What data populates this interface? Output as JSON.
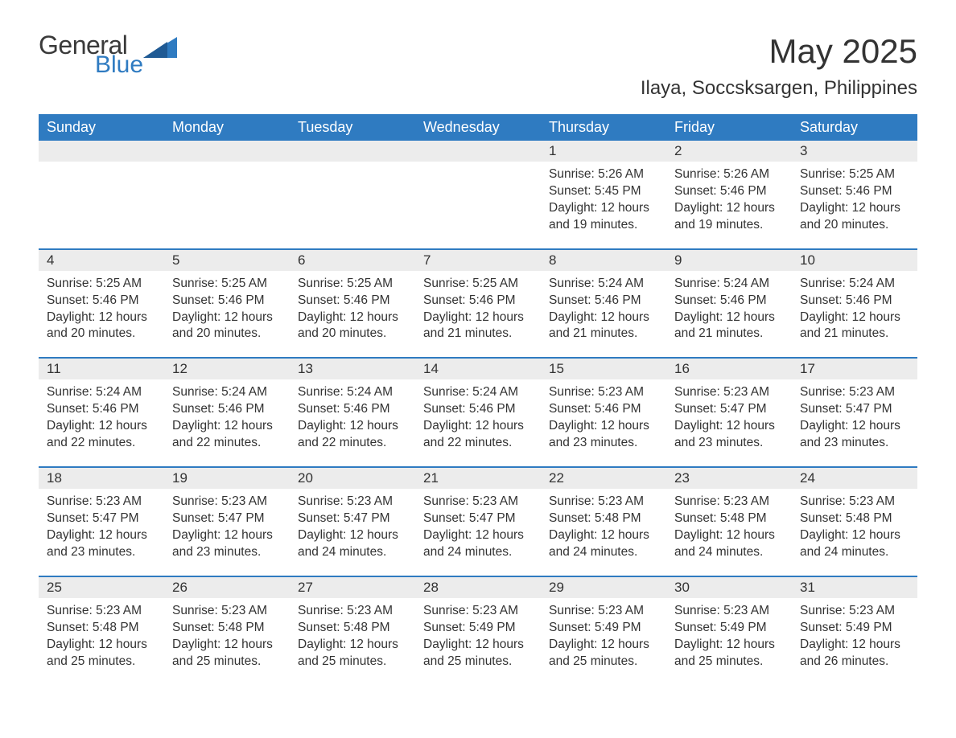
{
  "logo": {
    "general": "General",
    "blue": "Blue",
    "shape_color": "#2f7bc1"
  },
  "title": "May 2025",
  "location": "Ilaya, Soccsksargen, Philippines",
  "colors": {
    "header_bg": "#2f7bc1",
    "header_text": "#ffffff",
    "date_strip_bg": "#ececec",
    "week_border": "#2f7bc1",
    "text": "#333333",
    "background": "#ffffff"
  },
  "typography": {
    "title_fontsize": 42,
    "location_fontsize": 24,
    "header_fontsize": 18,
    "date_fontsize": 17,
    "body_fontsize": 15.5
  },
  "layout": {
    "columns": 7,
    "rows": 5
  },
  "weekdays": [
    "Sunday",
    "Monday",
    "Tuesday",
    "Wednesday",
    "Thursday",
    "Friday",
    "Saturday"
  ],
  "weeks": [
    {
      "days": [
        {
          "date": "",
          "sunrise": "",
          "sunset": "",
          "daylight1": "",
          "daylight2": ""
        },
        {
          "date": "",
          "sunrise": "",
          "sunset": "",
          "daylight1": "",
          "daylight2": ""
        },
        {
          "date": "",
          "sunrise": "",
          "sunset": "",
          "daylight1": "",
          "daylight2": ""
        },
        {
          "date": "",
          "sunrise": "",
          "sunset": "",
          "daylight1": "",
          "daylight2": ""
        },
        {
          "date": "1",
          "sunrise": "Sunrise: 5:26 AM",
          "sunset": "Sunset: 5:45 PM",
          "daylight1": "Daylight: 12 hours",
          "daylight2": "and 19 minutes."
        },
        {
          "date": "2",
          "sunrise": "Sunrise: 5:26 AM",
          "sunset": "Sunset: 5:46 PM",
          "daylight1": "Daylight: 12 hours",
          "daylight2": "and 19 minutes."
        },
        {
          "date": "3",
          "sunrise": "Sunrise: 5:25 AM",
          "sunset": "Sunset: 5:46 PM",
          "daylight1": "Daylight: 12 hours",
          "daylight2": "and 20 minutes."
        }
      ]
    },
    {
      "days": [
        {
          "date": "4",
          "sunrise": "Sunrise: 5:25 AM",
          "sunset": "Sunset: 5:46 PM",
          "daylight1": "Daylight: 12 hours",
          "daylight2": "and 20 minutes."
        },
        {
          "date": "5",
          "sunrise": "Sunrise: 5:25 AM",
          "sunset": "Sunset: 5:46 PM",
          "daylight1": "Daylight: 12 hours",
          "daylight2": "and 20 minutes."
        },
        {
          "date": "6",
          "sunrise": "Sunrise: 5:25 AM",
          "sunset": "Sunset: 5:46 PM",
          "daylight1": "Daylight: 12 hours",
          "daylight2": "and 20 minutes."
        },
        {
          "date": "7",
          "sunrise": "Sunrise: 5:25 AM",
          "sunset": "Sunset: 5:46 PM",
          "daylight1": "Daylight: 12 hours",
          "daylight2": "and 21 minutes."
        },
        {
          "date": "8",
          "sunrise": "Sunrise: 5:24 AM",
          "sunset": "Sunset: 5:46 PM",
          "daylight1": "Daylight: 12 hours",
          "daylight2": "and 21 minutes."
        },
        {
          "date": "9",
          "sunrise": "Sunrise: 5:24 AM",
          "sunset": "Sunset: 5:46 PM",
          "daylight1": "Daylight: 12 hours",
          "daylight2": "and 21 minutes."
        },
        {
          "date": "10",
          "sunrise": "Sunrise: 5:24 AM",
          "sunset": "Sunset: 5:46 PM",
          "daylight1": "Daylight: 12 hours",
          "daylight2": "and 21 minutes."
        }
      ]
    },
    {
      "days": [
        {
          "date": "11",
          "sunrise": "Sunrise: 5:24 AM",
          "sunset": "Sunset: 5:46 PM",
          "daylight1": "Daylight: 12 hours",
          "daylight2": "and 22 minutes."
        },
        {
          "date": "12",
          "sunrise": "Sunrise: 5:24 AM",
          "sunset": "Sunset: 5:46 PM",
          "daylight1": "Daylight: 12 hours",
          "daylight2": "and 22 minutes."
        },
        {
          "date": "13",
          "sunrise": "Sunrise: 5:24 AM",
          "sunset": "Sunset: 5:46 PM",
          "daylight1": "Daylight: 12 hours",
          "daylight2": "and 22 minutes."
        },
        {
          "date": "14",
          "sunrise": "Sunrise: 5:24 AM",
          "sunset": "Sunset: 5:46 PM",
          "daylight1": "Daylight: 12 hours",
          "daylight2": "and 22 minutes."
        },
        {
          "date": "15",
          "sunrise": "Sunrise: 5:23 AM",
          "sunset": "Sunset: 5:46 PM",
          "daylight1": "Daylight: 12 hours",
          "daylight2": "and 23 minutes."
        },
        {
          "date": "16",
          "sunrise": "Sunrise: 5:23 AM",
          "sunset": "Sunset: 5:47 PM",
          "daylight1": "Daylight: 12 hours",
          "daylight2": "and 23 minutes."
        },
        {
          "date": "17",
          "sunrise": "Sunrise: 5:23 AM",
          "sunset": "Sunset: 5:47 PM",
          "daylight1": "Daylight: 12 hours",
          "daylight2": "and 23 minutes."
        }
      ]
    },
    {
      "days": [
        {
          "date": "18",
          "sunrise": "Sunrise: 5:23 AM",
          "sunset": "Sunset: 5:47 PM",
          "daylight1": "Daylight: 12 hours",
          "daylight2": "and 23 minutes."
        },
        {
          "date": "19",
          "sunrise": "Sunrise: 5:23 AM",
          "sunset": "Sunset: 5:47 PM",
          "daylight1": "Daylight: 12 hours",
          "daylight2": "and 23 minutes."
        },
        {
          "date": "20",
          "sunrise": "Sunrise: 5:23 AM",
          "sunset": "Sunset: 5:47 PM",
          "daylight1": "Daylight: 12 hours",
          "daylight2": "and 24 minutes."
        },
        {
          "date": "21",
          "sunrise": "Sunrise: 5:23 AM",
          "sunset": "Sunset: 5:47 PM",
          "daylight1": "Daylight: 12 hours",
          "daylight2": "and 24 minutes."
        },
        {
          "date": "22",
          "sunrise": "Sunrise: 5:23 AM",
          "sunset": "Sunset: 5:48 PM",
          "daylight1": "Daylight: 12 hours",
          "daylight2": "and 24 minutes."
        },
        {
          "date": "23",
          "sunrise": "Sunrise: 5:23 AM",
          "sunset": "Sunset: 5:48 PM",
          "daylight1": "Daylight: 12 hours",
          "daylight2": "and 24 minutes."
        },
        {
          "date": "24",
          "sunrise": "Sunrise: 5:23 AM",
          "sunset": "Sunset: 5:48 PM",
          "daylight1": "Daylight: 12 hours",
          "daylight2": "and 24 minutes."
        }
      ]
    },
    {
      "days": [
        {
          "date": "25",
          "sunrise": "Sunrise: 5:23 AM",
          "sunset": "Sunset: 5:48 PM",
          "daylight1": "Daylight: 12 hours",
          "daylight2": "and 25 minutes."
        },
        {
          "date": "26",
          "sunrise": "Sunrise: 5:23 AM",
          "sunset": "Sunset: 5:48 PM",
          "daylight1": "Daylight: 12 hours",
          "daylight2": "and 25 minutes."
        },
        {
          "date": "27",
          "sunrise": "Sunrise: 5:23 AM",
          "sunset": "Sunset: 5:48 PM",
          "daylight1": "Daylight: 12 hours",
          "daylight2": "and 25 minutes."
        },
        {
          "date": "28",
          "sunrise": "Sunrise: 5:23 AM",
          "sunset": "Sunset: 5:49 PM",
          "daylight1": "Daylight: 12 hours",
          "daylight2": "and 25 minutes."
        },
        {
          "date": "29",
          "sunrise": "Sunrise: 5:23 AM",
          "sunset": "Sunset: 5:49 PM",
          "daylight1": "Daylight: 12 hours",
          "daylight2": "and 25 minutes."
        },
        {
          "date": "30",
          "sunrise": "Sunrise: 5:23 AM",
          "sunset": "Sunset: 5:49 PM",
          "daylight1": "Daylight: 12 hours",
          "daylight2": "and 25 minutes."
        },
        {
          "date": "31",
          "sunrise": "Sunrise: 5:23 AM",
          "sunset": "Sunset: 5:49 PM",
          "daylight1": "Daylight: 12 hours",
          "daylight2": "and 26 minutes."
        }
      ]
    }
  ]
}
